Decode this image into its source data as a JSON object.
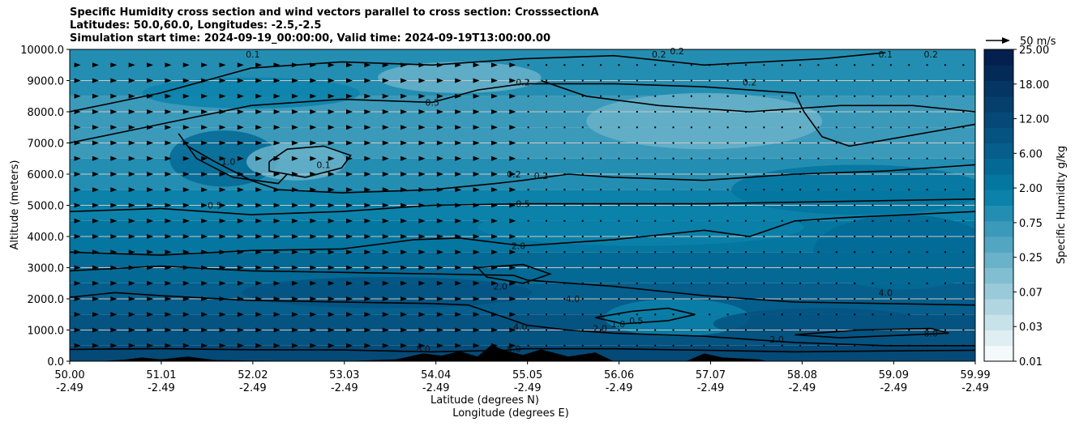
{
  "chart_data": {
    "type": "cross-section-filled-contour",
    "title_lines": [
      "Specific Humidity cross section and wind vectors parallel to cross section: CrosssectionA",
      "Latitudes: 50.0,60.0, Longitudes: -2.5,-2.5",
      "Simulation start time: 2024-09-19_00:00:00, Valid time: 2024-09-19T13:00:00.00"
    ],
    "ylabel": "Altitude (meters)",
    "xlabel_lines": [
      "Latitude (degrees N)",
      "Longitude (degrees E)"
    ],
    "xlim": [
      50.0,
      59.99
    ],
    "ylim": [
      0,
      10000
    ],
    "x_ticks": [
      {
        "lat": "50.00",
        "lon": "-2.49",
        "value": 50.0
      },
      {
        "lat": "51.01",
        "lon": "-2.49",
        "value": 51.01
      },
      {
        "lat": "52.02",
        "lon": "-2.49",
        "value": 52.02
      },
      {
        "lat": "53.03",
        "lon": "-2.49",
        "value": 53.03
      },
      {
        "lat": "54.04",
        "lon": "-2.49",
        "value": 54.04
      },
      {
        "lat": "55.05",
        "lon": "-2.49",
        "value": 55.05
      },
      {
        "lat": "56.06",
        "lon": "-2.49",
        "value": 56.06
      },
      {
        "lat": "57.07",
        "lon": "-2.49",
        "value": 57.07
      },
      {
        "lat": "58.08",
        "lon": "-2.49",
        "value": 58.08
      },
      {
        "lat": "59.09",
        "lon": "-2.49",
        "value": 59.09
      },
      {
        "lat": "59.99",
        "lon": "-2.49",
        "value": 59.99
      }
    ],
    "y_ticks": [
      {
        "label": "0.0",
        "value": 0
      },
      {
        "label": "1000.0",
        "value": 1000
      },
      {
        "label": "2000.0",
        "value": 2000
      },
      {
        "label": "3000.0",
        "value": 3000
      },
      {
        "label": "4000.0",
        "value": 4000
      },
      {
        "label": "5000.0",
        "value": 5000
      },
      {
        "label": "6000.0",
        "value": 6000
      },
      {
        "label": "7000.0",
        "value": 7000
      },
      {
        "label": "8000.0",
        "value": 8000
      },
      {
        "label": "9000.0",
        "value": 9000
      },
      {
        "label": "10000.0",
        "value": 10000
      }
    ],
    "grid_y": true,
    "colorbar": {
      "label": "Specific Humidity g/kg",
      "tick_labels": [
        "0.01",
        "0.03",
        "0.07",
        "0.25",
        "0.75",
        "2.00",
        "6.00",
        "12.00",
        "18.00",
        "25.00"
      ],
      "levels": 20,
      "colors": [
        "#f4fafb",
        "#dfeef2",
        "#c8e2ea",
        "#b1d6e2",
        "#99cad9",
        "#82bed1",
        "#6ab2c9",
        "#53a6c1",
        "#3b9aba",
        "#248eb2",
        "#0c82aa",
        "#0476a0",
        "#046a95",
        "#055e8b",
        "#055381",
        "#054976",
        "#053f6c",
        "#053562",
        "#042a58",
        "#03204e"
      ]
    },
    "quiver_key": {
      "label": "50 m/s",
      "value": 50
    },
    "contour_labels": [
      {
        "text": "0.1",
        "x": 52.02,
        "y": 9850
      },
      {
        "text": "0.2",
        "x": 55.0,
        "y": 8950
      },
      {
        "text": "0.2",
        "x": 57.5,
        "y": 8950
      },
      {
        "text": "0.5",
        "x": 54.0,
        "y": 8300
      },
      {
        "text": "0.1",
        "x": 52.8,
        "y": 6300
      },
      {
        "text": "1.0",
        "x": 51.75,
        "y": 6400
      },
      {
        "text": "0.5",
        "x": 51.6,
        "y": 5000
      },
      {
        "text": "0.2",
        "x": 54.9,
        "y": 6000
      },
      {
        "text": "0.2",
        "x": 55.2,
        "y": 5950
      },
      {
        "text": "0.5",
        "x": 55.0,
        "y": 5050
      },
      {
        "text": "2.0",
        "x": 54.95,
        "y": 3700
      },
      {
        "text": "2.0",
        "x": 54.75,
        "y": 2400
      },
      {
        "text": "4.0",
        "x": 55.55,
        "y": 2000
      },
      {
        "text": "4.0",
        "x": 54.97,
        "y": 1100
      },
      {
        "text": "2.0",
        "x": 55.85,
        "y": 1050
      },
      {
        "text": "1.0",
        "x": 56.05,
        "y": 1200
      },
      {
        "text": "0.5",
        "x": 56.25,
        "y": 1300
      },
      {
        "text": "8.0",
        "x": 53.9,
        "y": 400
      },
      {
        "text": "8.0",
        "x": 54.9,
        "y": 400
      },
      {
        "text": "2.0",
        "x": 57.8,
        "y": 700
      },
      {
        "text": "4.0",
        "x": 59.0,
        "y": 2200
      },
      {
        "text": "8.0",
        "x": 59.5,
        "y": 900
      },
      {
        "text": "0.2",
        "x": 56.5,
        "y": 9850
      },
      {
        "text": "0.1",
        "x": 59.0,
        "y": 9850
      },
      {
        "text": "0.2",
        "x": 59.5,
        "y": 9850
      },
      {
        "text": "0.2",
        "x": 56.7,
        "y": 9950
      }
    ],
    "wind": {
      "description": "wind vectors parallel to cross section, strongest (pointing north) for latitudes 50.0-55.0, near zero further north",
      "strong_region_lat": [
        50.0,
        55.0
      ]
    }
  }
}
